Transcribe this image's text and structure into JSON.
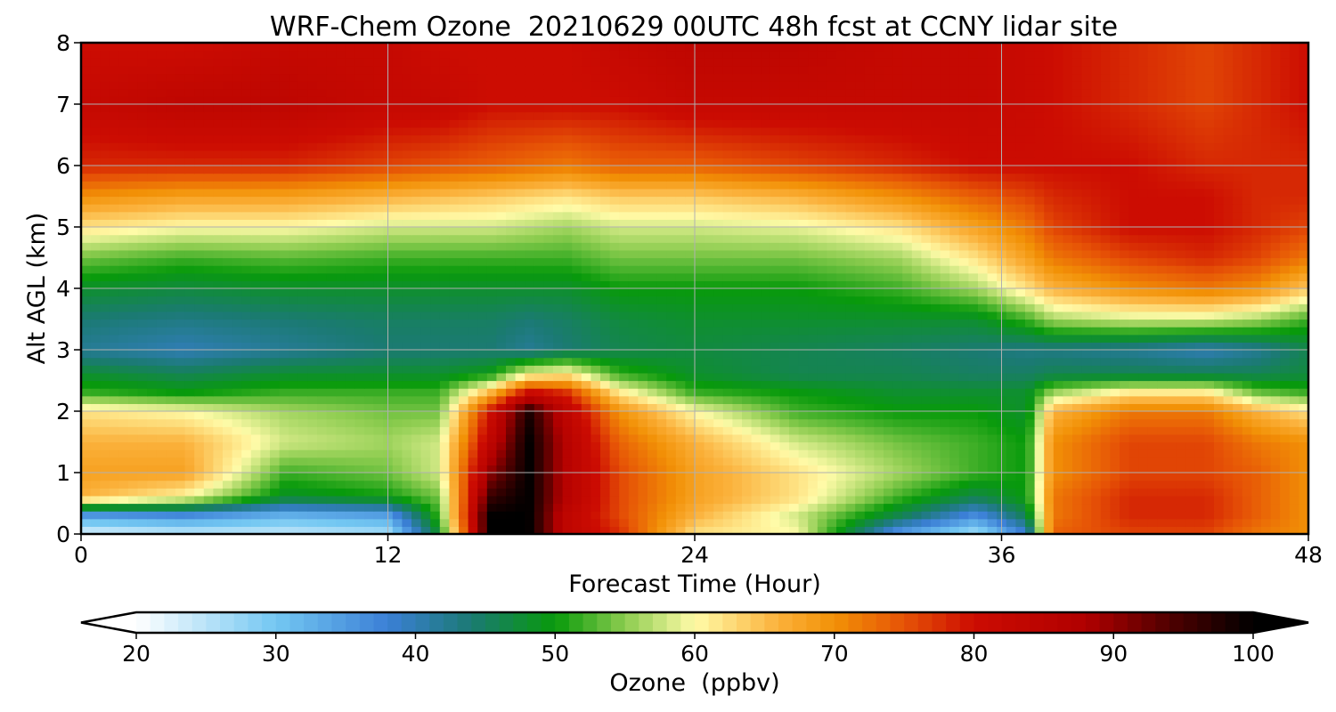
{
  "chart_data": {
    "type": "heatmap",
    "title": "WRF-Chem Ozone  20210629 00UTC 48h fcst at CCNY lidar site",
    "xlabel": "Forecast Time (Hour)",
    "ylabel": "Alt AGL (km)",
    "xlim": [
      0,
      48
    ],
    "ylim": [
      0,
      8
    ],
    "xticks": [
      0,
      12,
      24,
      36,
      48
    ],
    "yticks": [
      0,
      1,
      2,
      3,
      4,
      5,
      6,
      7,
      8
    ],
    "grid": true,
    "x": [
      0,
      4,
      8,
      12,
      14,
      16,
      17.5,
      19,
      21,
      24,
      28,
      32,
      35,
      37,
      38,
      41,
      44,
      46,
      48
    ],
    "y": [
      0,
      0.3,
      0.6,
      1,
      1.5,
      2,
      2.3,
      2.6,
      3,
      3.5,
      4,
      4.5,
      5,
      5.5,
      6,
      7,
      8
    ],
    "z": [
      [
        22,
        24,
        24,
        26,
        48,
        100,
        100,
        84,
        78,
        62,
        60,
        34,
        26,
        38,
        74,
        76,
        76,
        72,
        70
      ],
      [
        34,
        36,
        32,
        34,
        52,
        100,
        100,
        84,
        76,
        66,
        58,
        46,
        36,
        46,
        72,
        78,
        78,
        74,
        70
      ],
      [
        66,
        60,
        48,
        50,
        54,
        96,
        100,
        86,
        76,
        68,
        62,
        52,
        46,
        50,
        72,
        78,
        78,
        74,
        70
      ],
      [
        68,
        68,
        52,
        54,
        58,
        90,
        100,
        86,
        76,
        68,
        62,
        56,
        52,
        50,
        70,
        76,
        76,
        74,
        70
      ],
      [
        66,
        66,
        58,
        56,
        58,
        84,
        100,
        86,
        74,
        66,
        58,
        54,
        52,
        50,
        70,
        76,
        76,
        72,
        70
      ],
      [
        62,
        60,
        56,
        54,
        54,
        80,
        98,
        84,
        70,
        60,
        52,
        50,
        50,
        48,
        66,
        72,
        72,
        66,
        62
      ],
      [
        52,
        50,
        52,
        52,
        52,
        66,
        82,
        78,
        62,
        52,
        50,
        48,
        48,
        48,
        56,
        62,
        62,
        54,
        52
      ],
      [
        48,
        46,
        48,
        48,
        48,
        50,
        60,
        62,
        52,
        48,
        46,
        46,
        45,
        45,
        46,
        46,
        46,
        46,
        47
      ],
      [
        42,
        40,
        42,
        44,
        44,
        44,
        42,
        44,
        46,
        47,
        46,
        45,
        44,
        43,
        43,
        42,
        40,
        42,
        46
      ],
      [
        44,
        43,
        44,
        45,
        45,
        45,
        44,
        45,
        47,
        48,
        48,
        48,
        48,
        52,
        56,
        58,
        58,
        56,
        52
      ],
      [
        48,
        47,
        48,
        48,
        48,
        48,
        48,
        48,
        50,
        50,
        50,
        52,
        56,
        62,
        66,
        70,
        72,
        70,
        64
      ],
      [
        54,
        52,
        53,
        52,
        52,
        52,
        52,
        52,
        54,
        54,
        54,
        56,
        62,
        68,
        72,
        76,
        78,
        76,
        72
      ],
      [
        62,
        60,
        60,
        58,
        58,
        58,
        57,
        56,
        58,
        58,
        59,
        62,
        68,
        72,
        76,
        80,
        80,
        78,
        76
      ],
      [
        70,
        68,
        68,
        66,
        65,
        64,
        63,
        62,
        64,
        64,
        66,
        70,
        74,
        76,
        78,
        80,
        80,
        78,
        78
      ],
      [
        78,
        78,
        78,
        76,
        75,
        74,
        73,
        72,
        74,
        74,
        76,
        78,
        80,
        80,
        80,
        80,
        78,
        78,
        78
      ],
      [
        82,
        84,
        84,
        82,
        82,
        80,
        80,
        80,
        80,
        82,
        82,
        82,
        82,
        81,
        80,
        78,
        76,
        78,
        80
      ],
      [
        80,
        80,
        82,
        82,
        80,
        80,
        80,
        80,
        82,
        84,
        84,
        82,
        82,
        81,
        80,
        78,
        76,
        78,
        80
      ]
    ],
    "colorbar": {
      "label": "Ozone  (ppbv)",
      "vmin": 20,
      "vmax": 100,
      "ticks": [
        20,
        30,
        40,
        50,
        60,
        70,
        80,
        90,
        100
      ],
      "extend": "both",
      "stops": [
        {
          "v": 20,
          "color": "#ffffff"
        },
        {
          "v": 30,
          "color": "#73c7f2"
        },
        {
          "v": 38,
          "color": "#3b7fd6"
        },
        {
          "v": 44,
          "color": "#1b7a73"
        },
        {
          "v": 50,
          "color": "#089a0b"
        },
        {
          "v": 55,
          "color": "#8ccc4f"
        },
        {
          "v": 60,
          "color": "#fffba8"
        },
        {
          "v": 66,
          "color": "#fbb13b"
        },
        {
          "v": 70,
          "color": "#f29106"
        },
        {
          "v": 75,
          "color": "#e65306"
        },
        {
          "v": 80,
          "color": "#cc0c02"
        },
        {
          "v": 88,
          "color": "#b00000"
        },
        {
          "v": 94,
          "color": "#500000"
        },
        {
          "v": 100,
          "color": "#000000"
        }
      ]
    }
  }
}
